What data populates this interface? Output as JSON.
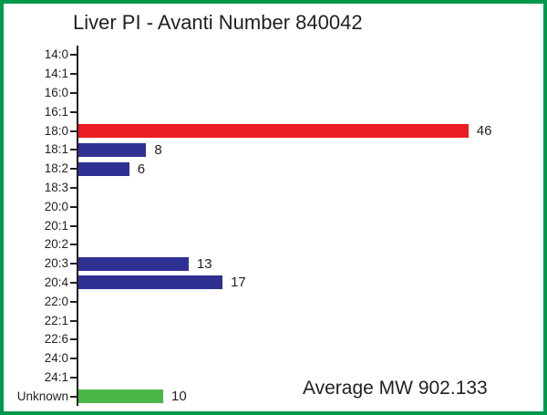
{
  "colors": {
    "red": "#EC1C24",
    "blue": "#2E3192",
    "green": "#4CB749",
    "frame_green": "#00984B",
    "axis_black": "#231F20"
  },
  "chart_data": {
    "type": "bar",
    "orientation": "horizontal",
    "title": "Liver PI - Avanti Number 840042",
    "annotation": "Average MW 902.133",
    "categories": [
      "14:0",
      "14:1",
      "16:0",
      "16:1",
      "18:0",
      "18:1",
      "18:2",
      "18:3",
      "20:0",
      "20:1",
      "20:2",
      "20:3",
      "20:4",
      "22:0",
      "22:1",
      "22:6",
      "24:0",
      "24:1",
      "Unknown"
    ],
    "values": [
      0,
      0,
      0,
      0,
      46,
      8,
      6,
      0,
      0,
      0,
      0,
      13,
      17,
      0,
      0,
      0,
      0,
      0,
      10
    ],
    "bar_color_keys": [
      null,
      null,
      null,
      null,
      "red",
      "blue",
      "blue",
      null,
      null,
      null,
      null,
      "blue",
      "blue",
      null,
      null,
      null,
      null,
      null,
      "green"
    ],
    "xlim": [
      0,
      50
    ],
    "grid": false,
    "legend": false,
    "data_labels_shown_for_nonzero": true
  }
}
